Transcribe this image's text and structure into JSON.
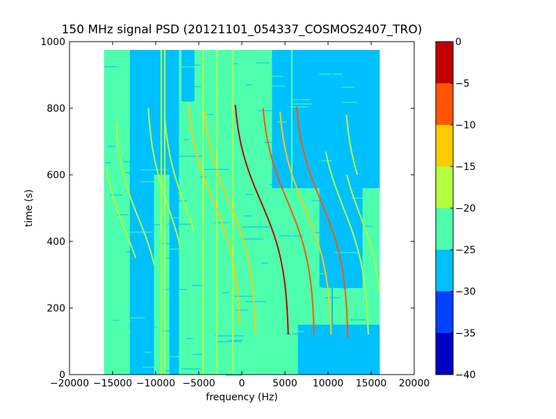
{
  "chart_data": {
    "type": "heatmap",
    "title": "150 MHz signal PSD (20121101_054337_COSMOS2407_TRO)",
    "xlabel": "frequency (Hz)",
    "ylabel": "time (s)",
    "xlim": [
      -20000,
      20000
    ],
    "ylim": [
      0,
      1000
    ],
    "xticks": [
      -20000,
      -15000,
      -10000,
      -5000,
      0,
      5000,
      10000,
      15000,
      20000
    ],
    "xtick_labels": [
      "−20000",
      "−15000",
      "−10000",
      "−5000",
      "0",
      "5000",
      "10000",
      "15000",
      "20000"
    ],
    "yticks": [
      0,
      200,
      400,
      600,
      800,
      1000
    ],
    "ytick_labels": [
      "0",
      "200",
      "400",
      "600",
      "800",
      "1000"
    ],
    "data_extent": {
      "freq": [
        -16000,
        16000
      ],
      "time": [
        0,
        975
      ]
    },
    "background_level": -22,
    "low_power_regions": [
      {
        "freq": [
          -13000,
          -10200
        ],
        "time": [
          0,
          975
        ],
        "level": -27
      },
      {
        "freq": [
          -10200,
          -7500
        ],
        "time": [
          600,
          975
        ],
        "level": -27
      },
      {
        "freq": [
          -8400,
          -7300
        ],
        "time": [
          0,
          975
        ],
        "level": -27
      },
      {
        "freq": [
          -7000,
          -5500
        ],
        "time": [
          820,
          975
        ],
        "level": -27
      },
      {
        "freq": [
          3500,
          16000
        ],
        "time": [
          560,
          975
        ],
        "level": -27
      },
      {
        "freq": [
          9000,
          14000
        ],
        "time": [
          260,
          560
        ],
        "level": -27
      },
      {
        "freq": [
          6500,
          16000
        ],
        "time": [
          0,
          150
        ],
        "level": -27
      }
    ],
    "constant_lines": [
      {
        "freq": -9350,
        "level": -17
      },
      {
        "freq": -8950,
        "level": -17
      },
      {
        "freq": -4500,
        "level": -17
      },
      {
        "freq": -2900,
        "level": -17
      },
      {
        "freq": -1050,
        "level": -17
      },
      {
        "freq": 5800,
        "level": -23
      },
      {
        "freq": 10480,
        "level": -27
      }
    ],
    "doppler_traces": [
      {
        "center_freq": -13500,
        "center_time": 430,
        "amplitude": 2800,
        "width": 180,
        "time_range": [
          350,
          620
        ],
        "level": -17
      },
      {
        "center_freq": -12000,
        "center_time": 470,
        "amplitude": 2800,
        "width": 180,
        "time_range": [
          330,
          760
        ],
        "level": -17
      },
      {
        "center_freq": -8500,
        "center_time": 500,
        "amplitude": 2600,
        "width": 200,
        "time_range": [
          380,
          800
        ],
        "level": -17
      },
      {
        "center_freq": -6500,
        "center_time": 500,
        "amplitude": 2800,
        "width": 200,
        "time_range": [
          430,
          780
        ],
        "level": -17
      },
      {
        "center_freq": -3300,
        "center_time": 520,
        "amplitude": 3200,
        "width": 200,
        "time_range": [
          150,
          810
        ],
        "level": -12
      },
      {
        "center_freq": -1500,
        "center_time": 520,
        "amplitude": 3200,
        "width": 200,
        "time_range": [
          120,
          790
        ],
        "level": -12
      },
      {
        "center_freq": 2200,
        "center_time": 520,
        "amplitude": 3300,
        "width": 200,
        "time_range": [
          120,
          810
        ],
        "level": -3
      },
      {
        "center_freq": 5300,
        "center_time": 520,
        "amplitude": 3200,
        "width": 200,
        "time_range": [
          120,
          800
        ],
        "level": -8
      },
      {
        "center_freq": 7300,
        "center_time": 500,
        "amplitude": 3200,
        "width": 200,
        "time_range": [
          120,
          790
        ],
        "level": -12
      },
      {
        "center_freq": 9200,
        "center_time": 520,
        "amplitude": 3200,
        "width": 200,
        "time_range": [
          110,
          805
        ],
        "level": -8
      },
      {
        "center_freq": 11800,
        "center_time": 500,
        "amplitude": 3000,
        "width": 200,
        "time_range": [
          120,
          670
        ],
        "level": -17
      },
      {
        "center_freq": 13700,
        "center_time": 480,
        "amplitude": 2600,
        "width": 180,
        "time_range": [
          250,
          600
        ],
        "level": -17
      },
      {
        "center_freq": 14800,
        "center_time": 500,
        "amplitude": 3000,
        "width": 200,
        "time_range": [
          600,
          780
        ],
        "level": -17
      }
    ],
    "colorbar": {
      "range": [
        -40,
        0
      ],
      "ticks": [
        0,
        -5,
        -10,
        -15,
        -20,
        -25,
        -30,
        -35,
        -40
      ],
      "tick_labels": [
        "0",
        "−5",
        "−10",
        "−15",
        "−20",
        "−25",
        "−30",
        "−35",
        "−40"
      ],
      "bands": [
        {
          "from": -40,
          "to": -35,
          "color": "#0000c0"
        },
        {
          "from": -35,
          "to": -30,
          "color": "#0040ff"
        },
        {
          "from": -30,
          "to": -25,
          "color": "#00c0ff"
        },
        {
          "from": -25,
          "to": -20,
          "color": "#4dffad"
        },
        {
          "from": -20,
          "to": -15,
          "color": "#b2ff40"
        },
        {
          "from": -15,
          "to": -10,
          "color": "#ffcc00"
        },
        {
          "from": -10,
          "to": -5,
          "color": "#ff5500"
        },
        {
          "from": -5,
          "to": 0,
          "color": "#c00000"
        }
      ]
    }
  }
}
